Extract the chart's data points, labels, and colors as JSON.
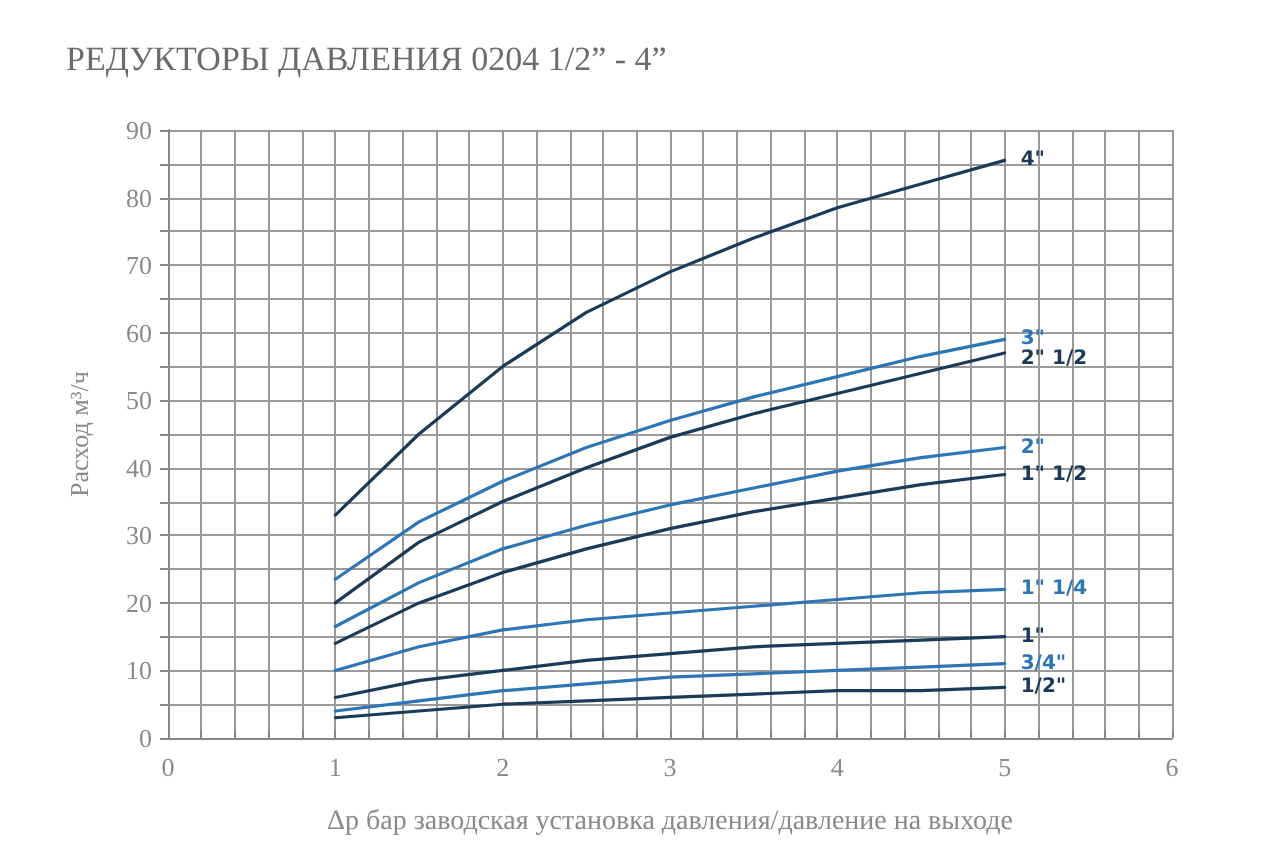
{
  "chart_data": {
    "type": "line",
    "title": "РЕДУКТОРЫ ДАВЛЕНИЯ 0204 1/2” - 4”",
    "xlabel": "Δр бар заводская установка давления/давление на выходе",
    "ylabel": "Расход м³/ч",
    "x": [
      1,
      1.5,
      2,
      2.5,
      3,
      3.5,
      4,
      4.5,
      5
    ],
    "series": [
      {
        "name": "4\"",
        "color": "#1b3a57",
        "values": [
          33,
          45,
          55,
          63,
          69,
          74,
          78.5,
          82,
          85.5
        ]
      },
      {
        "name": "3\"",
        "color": "#2e75b6",
        "values": [
          23.5,
          32,
          38,
          43,
          47,
          50.5,
          53.5,
          56.5,
          59
        ]
      },
      {
        "name": "2\" 1/2",
        "color": "#1b3a57",
        "values": [
          20,
          29,
          35,
          40,
          44.5,
          48,
          51,
          54,
          57
        ]
      },
      {
        "name": "2\"",
        "color": "#2e75b6",
        "values": [
          16.5,
          23,
          28,
          31.5,
          34.5,
          37,
          39.5,
          41.5,
          43
        ]
      },
      {
        "name": "1\" 1/2",
        "color": "#1b3a57",
        "values": [
          14,
          20,
          24.5,
          28,
          31,
          33.5,
          35.5,
          37.5,
          39
        ]
      },
      {
        "name": "1\" 1/4",
        "color": "#2e75b6",
        "values": [
          10,
          13.5,
          16,
          17.5,
          18.5,
          19.5,
          20.5,
          21.5,
          22
        ]
      },
      {
        "name": "1\"",
        "color": "#1b3a57",
        "values": [
          6,
          8.5,
          10,
          11.5,
          12.5,
          13.5,
          14,
          14.5,
          15
        ]
      },
      {
        "name": "3/4\"",
        "color": "#2e75b6",
        "values": [
          4,
          5.5,
          7,
          8,
          9,
          9.5,
          10,
          10.5,
          11
        ]
      },
      {
        "name": "1/2\"",
        "color": "#1b3a57",
        "values": [
          3,
          4,
          5,
          5.5,
          6,
          6.5,
          7,
          7,
          7.5
        ]
      }
    ],
    "xlim": [
      0,
      6
    ],
    "xticks": [
      0,
      {
        "value": 0.2,
        "label": null
      },
      {
        "value": 0.4,
        "label": null
      },
      {
        "value": 0.6,
        "label": null
      },
      {
        "value": 0.8,
        "label": null
      },
      1,
      {
        "value": 1.2,
        "label": null
      },
      {
        "value": 1.4,
        "label": null
      },
      {
        "value": 1.6,
        "label": null
      },
      {
        "value": 1.8,
        "label": null
      },
      2,
      {
        "value": 2.2,
        "label": null
      },
      {
        "value": 2.4,
        "label": null
      },
      {
        "value": 2.6,
        "label": null
      },
      {
        "value": 2.8,
        "label": null
      },
      3,
      {
        "value": 3.2,
        "label": null
      },
      {
        "value": 3.4,
        "label": null
      },
      {
        "value": 3.6,
        "label": null
      },
      {
        "value": 3.8,
        "label": null
      },
      4,
      {
        "value": 4.2,
        "label": null
      },
      {
        "value": 4.4,
        "label": null
      },
      {
        "value": 4.6,
        "label": null
      },
      {
        "value": 4.8,
        "label": null
      },
      5,
      {
        "value": 5.2,
        "label": null
      },
      {
        "value": 5.4,
        "label": null
      },
      {
        "value": 5.6,
        "label": null
      },
      {
        "value": 5.8,
        "label": null
      },
      6
    ],
    "ylim": [
      0,
      90
    ],
    "yticks": [
      0,
      {
        "value": 5,
        "label": null
      },
      10,
      {
        "value": 15,
        "label": null
      },
      20,
      {
        "value": 25,
        "label": null
      },
      30,
      {
        "value": 35,
        "label": null
      },
      40,
      {
        "value": 45,
        "label": null
      },
      50,
      {
        "value": 55,
        "label": null
      },
      60,
      {
        "value": 65,
        "label": null
      },
      70,
      {
        "value": 75,
        "label": null
      },
      80,
      {
        "value": 85,
        "label": null
      },
      90
    ],
    "grid": true,
    "legend": false,
    "marker": "none",
    "line_style": "solid"
  }
}
